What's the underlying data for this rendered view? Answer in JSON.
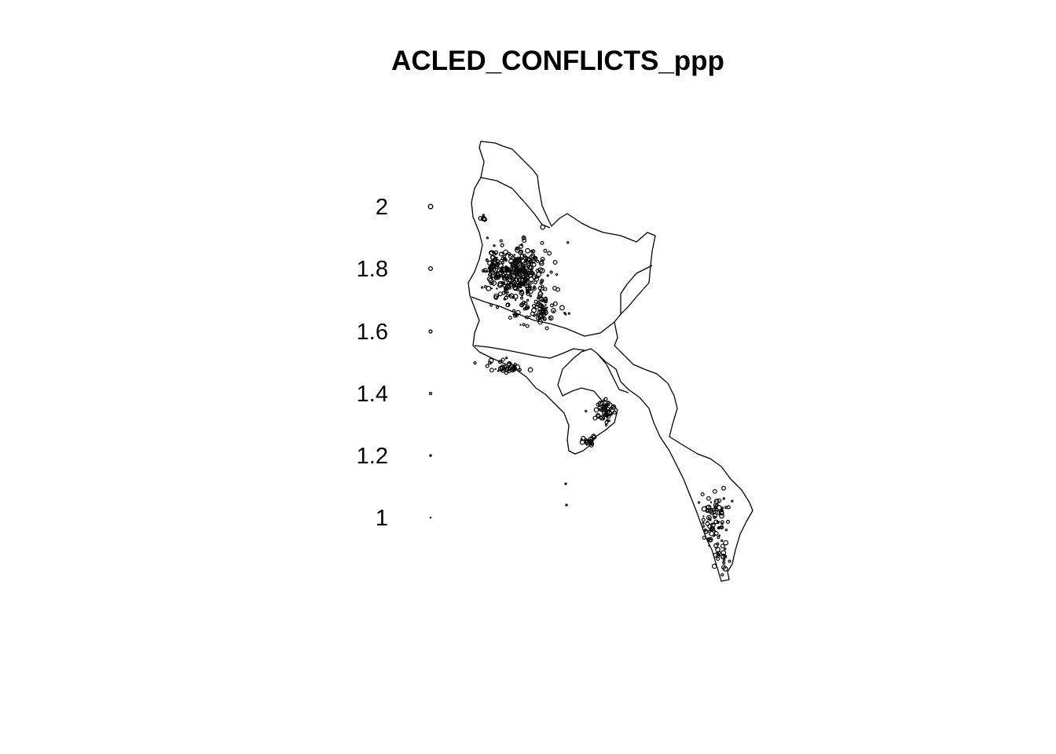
{
  "title": "ACLED_CONFLICTS_ppp",
  "legend": {
    "entries": [
      {
        "label": "2",
        "value": 2
      },
      {
        "label": "1.8",
        "value": 1.8
      },
      {
        "label": "1.6",
        "value": 1.6
      },
      {
        "label": "1.4",
        "value": 1.4
      },
      {
        "label": "1.2",
        "value": 1.2
      },
      {
        "label": "1",
        "value": 1
      }
    ]
  },
  "colors": {
    "outline": "#000000",
    "points": "#000000",
    "background": "#ffffff"
  }
}
